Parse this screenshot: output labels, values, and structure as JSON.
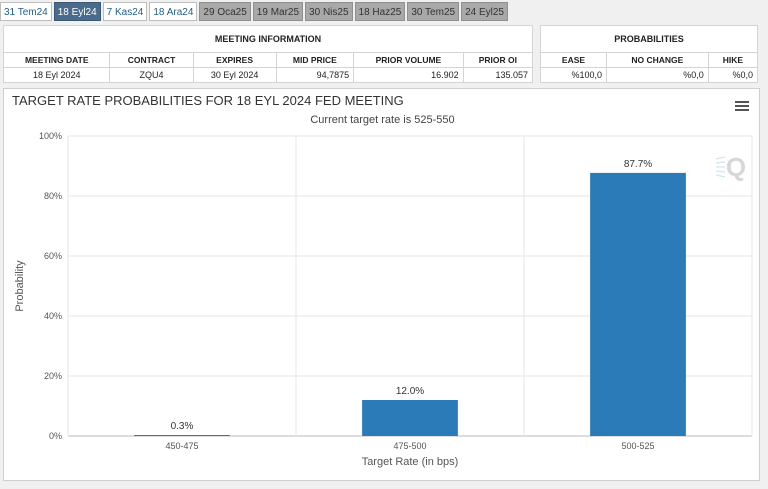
{
  "tabs": [
    {
      "label": "31 Tem24",
      "state": "normal"
    },
    {
      "label": "18 Eyl24",
      "state": "active"
    },
    {
      "label": "7 Kas24",
      "state": "normal"
    },
    {
      "label": "18 Ara24",
      "state": "normal"
    },
    {
      "label": "29 Oca25",
      "state": "grey"
    },
    {
      "label": "19 Mar25",
      "state": "grey"
    },
    {
      "label": "30 Nis25",
      "state": "grey"
    },
    {
      "label": "18 Haz25",
      "state": "grey"
    },
    {
      "label": "30 Tem25",
      "state": "grey"
    },
    {
      "label": "24 Eyl25",
      "state": "grey"
    }
  ],
  "meeting_info": {
    "title": "MEETING INFORMATION",
    "headers": [
      "MEETING DATE",
      "CONTRACT",
      "EXPIRES",
      "MID PRICE",
      "PRIOR VOLUME",
      "PRIOR OI"
    ],
    "row": [
      "18 Eyl 2024",
      "ZQU4",
      "30 Eyl 2024",
      "94,7875",
      "16.902",
      "135.057"
    ]
  },
  "probabilities": {
    "title": "PROBABILITIES",
    "headers": [
      "EASE",
      "NO CHANGE",
      "HIKE"
    ],
    "row": [
      "%100,0",
      "%0,0",
      "%0,0"
    ]
  },
  "chart_data": {
    "type": "bar",
    "title": "TARGET RATE PROBABILITIES FOR 18 EYL 2024 FED MEETING",
    "subtitle": "Current target rate is 525-550",
    "xlabel": "Target Rate (in bps)",
    "ylabel": "Probability",
    "categories": [
      "450-475",
      "475-500",
      "500-525"
    ],
    "values": [
      0.3,
      12.0,
      87.7
    ],
    "data_labels": [
      "0.3%",
      "12.0%",
      "87.7%"
    ],
    "ylim": [
      0,
      100
    ],
    "yticks": [
      0,
      20,
      40,
      60,
      80,
      100
    ],
    "ytick_labels": [
      "0%",
      "20%",
      "40%",
      "60%",
      "80%",
      "100%"
    ],
    "bar_color": "#2b7bb9",
    "grid": true
  }
}
